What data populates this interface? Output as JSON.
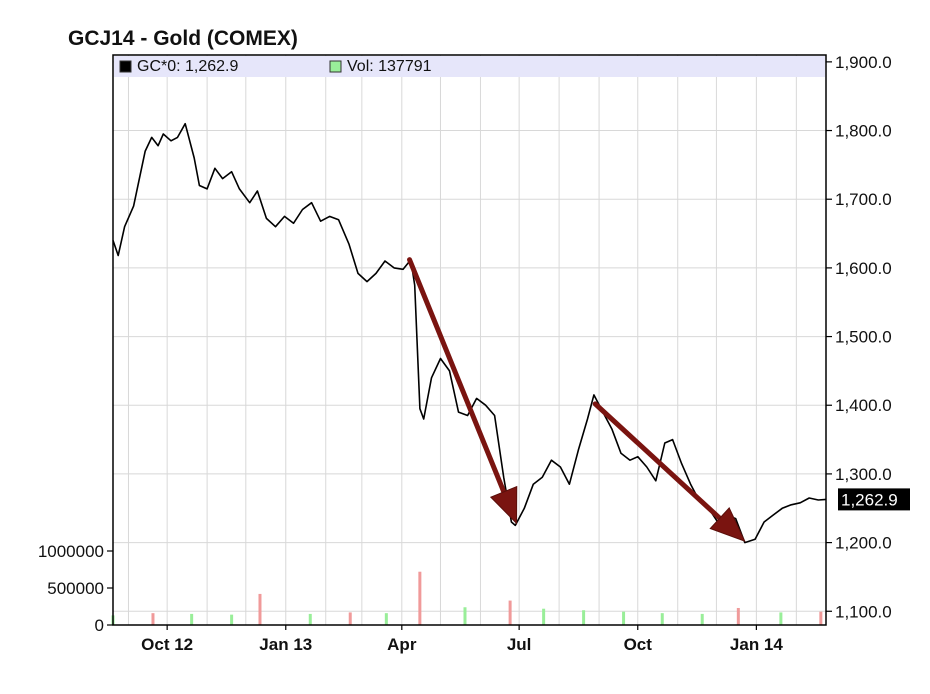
{
  "chart_data": {
    "type": "line",
    "title": "GCJ14 - Gold (COMEX)",
    "legend": {
      "placement": "top-left",
      "items": [
        {
          "name": "GC*0: 1,262.9",
          "color": "#000000"
        },
        {
          "name": "Vol: 137791",
          "color": "#99ee99"
        }
      ]
    },
    "colors": {
      "price_line": "#000000",
      "arrow": "#7a1410",
      "volume_up": "#99ee99",
      "volume_down": "#f09a9a",
      "legend_band": "#e6e6fa",
      "grid": "#d8d8d8"
    },
    "grid": true,
    "x_ticks": [
      "Oct 12",
      "Jan 13",
      "Apr",
      "Jul",
      "Oct",
      "Jan 14"
    ],
    "x_tick_dates": [
      "2012-10-01",
      "2013-01-01",
      "2013-04-01",
      "2013-07-01",
      "2013-10-01",
      "2014-01-01"
    ],
    "x_range": [
      "2012-08-20",
      "2014-02-24"
    ],
    "price_axis": {
      "position": "right",
      "range": [
        1080,
        1910
      ],
      "ticks": [
        "1,900.0",
        "1,800.0",
        "1,700.0",
        "1,600.0",
        "1,500.0",
        "1,400.0",
        "1,300.0",
        "1,200.0",
        "1,100.0"
      ],
      "tick_values": [
        1900,
        1800,
        1700,
        1600,
        1500,
        1400,
        1300,
        1200,
        1100
      ]
    },
    "volume_axis": {
      "position": "left",
      "range": [
        0,
        1000000
      ],
      "ticks": [
        "1000000",
        "500000",
        "0"
      ],
      "tick_values": [
        1000000,
        500000,
        0
      ]
    },
    "last_value_label": "1,262.9",
    "last_value": 1262.9,
    "series": [
      {
        "name": "GC*0: 1,262.9",
        "x": [
          "2012-08-20",
          "2012-08-24",
          "2012-08-29",
          "2012-09-05",
          "2012-09-10",
          "2012-09-14",
          "2012-09-19",
          "2012-09-24",
          "2012-09-28",
          "2012-10-04",
          "2012-10-09",
          "2012-10-15",
          "2012-10-22",
          "2012-10-26",
          "2012-11-01",
          "2012-11-07",
          "2012-11-13",
          "2012-11-20",
          "2012-11-26",
          "2012-12-04",
          "2012-12-10",
          "2012-12-17",
          "2012-12-24",
          "2012-12-31",
          "2013-01-07",
          "2013-01-14",
          "2013-01-21",
          "2013-01-28",
          "2013-02-04",
          "2013-02-11",
          "2013-02-19",
          "2013-02-26",
          "2013-03-05",
          "2013-03-12",
          "2013-03-19",
          "2013-03-26",
          "2013-04-02",
          "2013-04-08",
          "2013-04-11",
          "2013-04-15",
          "2013-04-18",
          "2013-04-24",
          "2013-05-01",
          "2013-05-08",
          "2013-05-15",
          "2013-05-22",
          "2013-05-29",
          "2013-06-05",
          "2013-06-12",
          "2013-06-19",
          "2013-06-25",
          "2013-06-28",
          "2013-07-05",
          "2013-07-12",
          "2013-07-19",
          "2013-07-26",
          "2013-08-02",
          "2013-08-09",
          "2013-08-16",
          "2013-08-23",
          "2013-08-28",
          "2013-09-04",
          "2013-09-11",
          "2013-09-18",
          "2013-09-25",
          "2013-10-01",
          "2013-10-08",
          "2013-10-15",
          "2013-10-22",
          "2013-10-28",
          "2013-11-04",
          "2013-11-11",
          "2013-11-18",
          "2013-11-25",
          "2013-12-02",
          "2013-12-09",
          "2013-12-16",
          "2013-12-23",
          "2013-12-31",
          "2014-01-07",
          "2014-01-14",
          "2014-01-21",
          "2014-01-28",
          "2014-02-04",
          "2014-02-11",
          "2014-02-18",
          "2014-02-24"
        ],
        "y": [
          1640,
          1618,
          1660,
          1690,
          1735,
          1770,
          1790,
          1778,
          1795,
          1785,
          1790,
          1810,
          1760,
          1720,
          1715,
          1745,
          1730,
          1740,
          1715,
          1695,
          1712,
          1672,
          1660,
          1675,
          1665,
          1685,
          1695,
          1668,
          1675,
          1670,
          1635,
          1592,
          1580,
          1592,
          1610,
          1600,
          1598,
          1612,
          1575,
          1395,
          1380,
          1440,
          1468,
          1450,
          1390,
          1385,
          1410,
          1400,
          1385,
          1295,
          1230,
          1225,
          1250,
          1285,
          1295,
          1320,
          1310,
          1285,
          1335,
          1380,
          1415,
          1390,
          1365,
          1330,
          1320,
          1325,
          1310,
          1290,
          1345,
          1350,
          1315,
          1285,
          1260,
          1250,
          1230,
          1240,
          1235,
          1200,
          1205,
          1230,
          1240,
          1250,
          1255,
          1258,
          1265,
          1262,
          1262.9
        ]
      }
    ],
    "volume": {
      "name": "Vol: 137791",
      "x": [
        "2012-08-20",
        "2012-09-20",
        "2012-10-20",
        "2012-11-20",
        "2012-12-12",
        "2013-01-20",
        "2013-02-20",
        "2013-03-20",
        "2013-04-15",
        "2013-05-20",
        "2013-06-24",
        "2013-07-20",
        "2013-08-20",
        "2013-09-20",
        "2013-10-20",
        "2013-11-20",
        "2013-12-18",
        "2014-01-20",
        "2014-02-20"
      ],
      "values": [
        130000,
        160000,
        150000,
        140000,
        420000,
        150000,
        170000,
        160000,
        720000,
        240000,
        330000,
        220000,
        200000,
        180000,
        160000,
        150000,
        230000,
        170000,
        180000
      ]
    },
    "annotations": [
      {
        "type": "arrow",
        "from": [
          "2013-04-07",
          1612
        ],
        "to": [
          "2013-06-29",
          1228
        ]
      },
      {
        "type": "arrow",
        "from": [
          "2013-08-29",
          1402
        ],
        "to": [
          "2013-12-23",
          1202
        ]
      }
    ]
  }
}
